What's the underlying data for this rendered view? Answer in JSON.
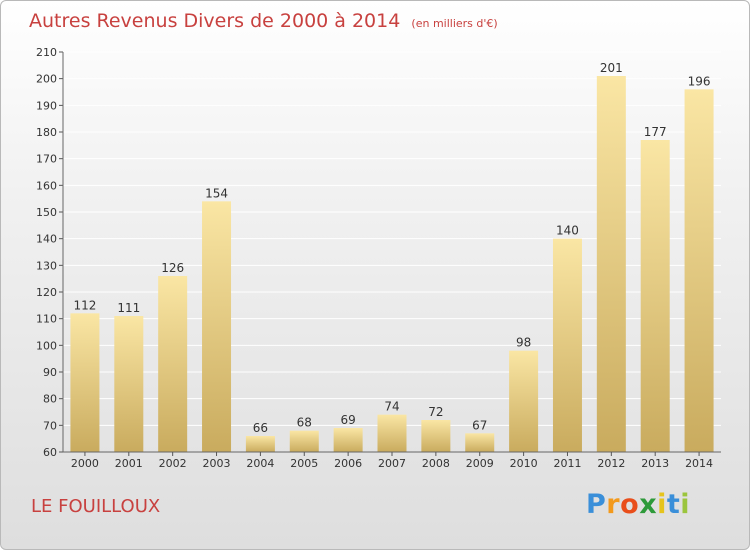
{
  "title": {
    "main": "Autres Revenus Divers de 2000 à 2014",
    "unit": "(en milliers d'€)"
  },
  "location": "LE FOUILLOUX",
  "logo": {
    "letters": [
      "P",
      "r",
      "o",
      "x",
      "i",
      "t",
      "i"
    ],
    "colors": [
      "#3a8fd9",
      "#f39a1c",
      "#e94e1b",
      "#2e9a3a",
      "#e6c41c",
      "#3a8fd9",
      "#9bc53d"
    ]
  },
  "colors": {
    "bar_light": "#fae6a4",
    "bar_dark": "#c9ab5e",
    "title": "#c8413f"
  },
  "chart_data": {
    "type": "bar",
    "categories": [
      "2000",
      "2001",
      "2002",
      "2003",
      "2004",
      "2005",
      "2006",
      "2007",
      "2008",
      "2009",
      "2010",
      "2011",
      "2012",
      "2013",
      "2014"
    ],
    "values": [
      112,
      111,
      126,
      154,
      66,
      68,
      69,
      74,
      72,
      67,
      98,
      140,
      201,
      177,
      196
    ],
    "ylim": [
      60,
      210
    ],
    "yticks": [
      60,
      70,
      80,
      90,
      100,
      110,
      120,
      130,
      140,
      150,
      160,
      170,
      180,
      190,
      200,
      210
    ],
    "grid": true
  }
}
